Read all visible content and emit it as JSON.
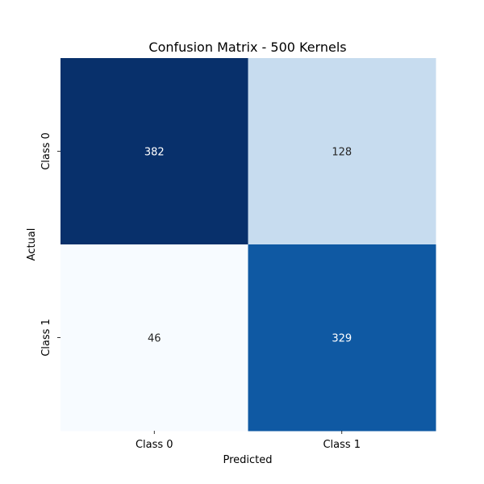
{
  "chart_data": {
    "type": "heatmap",
    "title": "Confusion Matrix - 500 Kernels",
    "xlabel": "Predicted",
    "ylabel": "Actual",
    "x_categories": [
      "Class 0",
      "Class 1"
    ],
    "y_categories": [
      "Class 0",
      "Class 1"
    ],
    "values": [
      [
        382,
        128
      ],
      [
        46,
        329
      ]
    ],
    "colormap": "Blues",
    "vmin": 46,
    "vmax": 382,
    "colorbar": false,
    "annotations": true
  }
}
